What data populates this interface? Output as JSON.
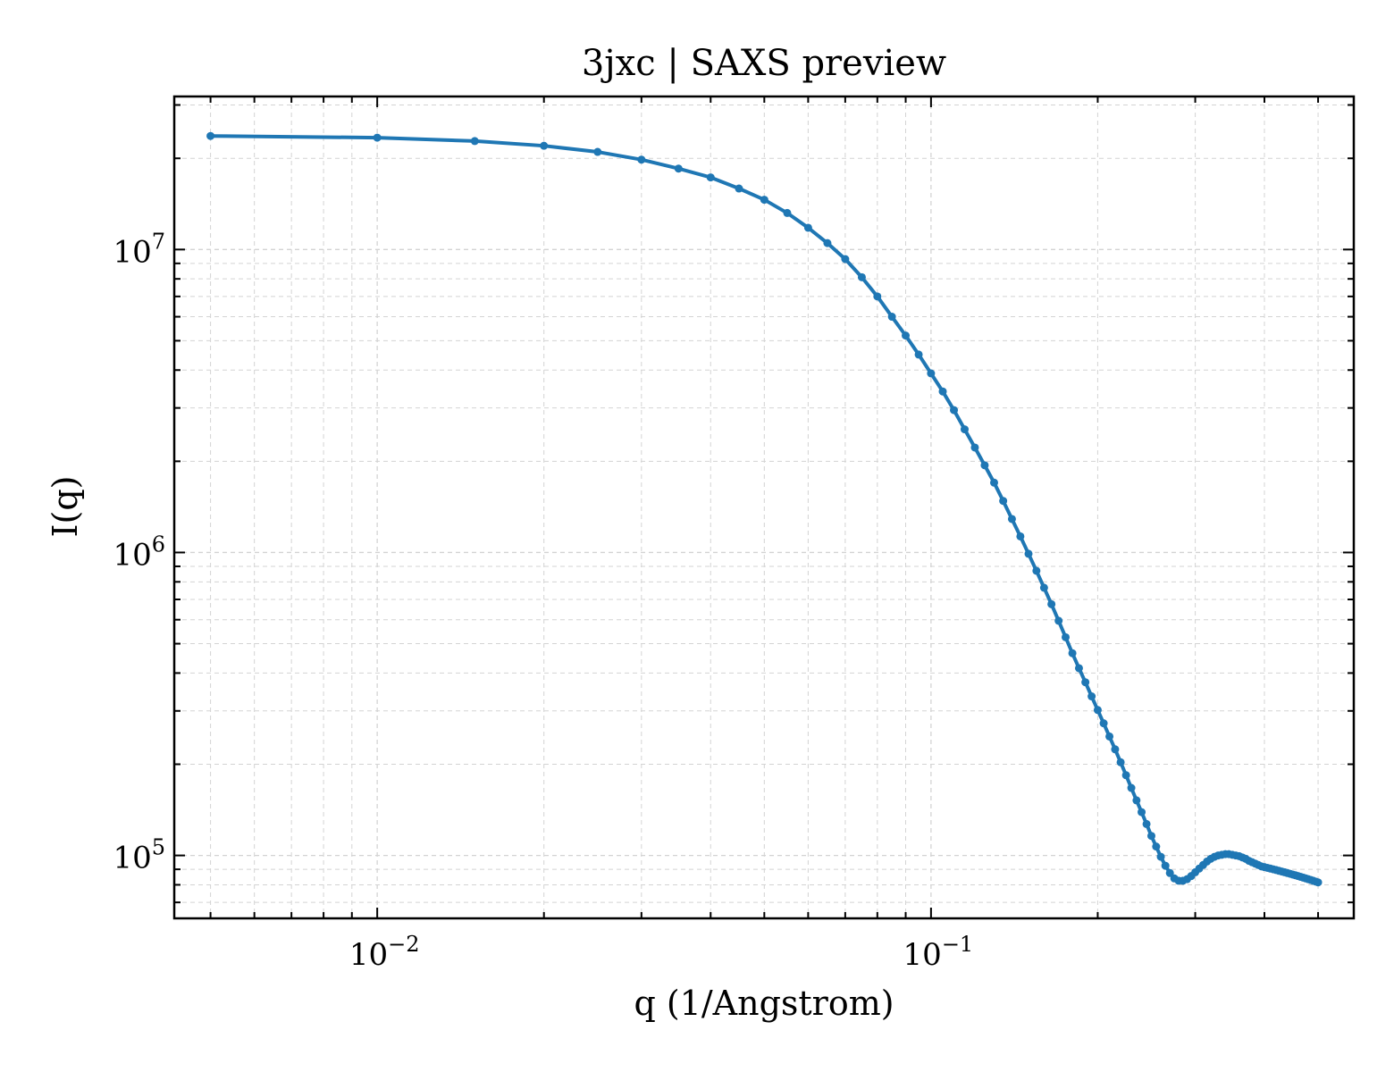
{
  "chart_data": {
    "type": "line",
    "title": "3jxc | SAXS preview",
    "xlabel": "q (1/Angstrom)",
    "ylabel": "I(q)",
    "xscale": "log",
    "yscale": "log",
    "xlim": [
      0.0043,
      0.58
    ],
    "ylim": [
      62000,
      32000000
    ],
    "xticks": [
      {
        "value": 0.01,
        "base": "10",
        "exp": "−2"
      },
      {
        "value": 0.1,
        "base": "10",
        "exp": "−1"
      }
    ],
    "yticks": [
      {
        "value": 100000,
        "base": "10",
        "exp": "5"
      },
      {
        "value": 1000000,
        "base": "10",
        "exp": "6"
      },
      {
        "value": 10000000,
        "base": "10",
        "exp": "7"
      }
    ],
    "grid": true,
    "colors": {
      "line": "#1f77b4",
      "grid": "#d3d3d3",
      "axes": "#000000"
    },
    "series": [
      {
        "x": [
          0.005,
          0.01,
          0.015,
          0.02,
          0.025,
          0.03,
          0.035,
          0.04,
          0.045,
          0.05,
          0.055,
          0.06,
          0.065,
          0.07,
          0.075,
          0.08,
          0.085,
          0.09,
          0.095,
          0.1,
          0.105,
          0.11,
          0.115,
          0.12,
          0.125,
          0.13,
          0.135,
          0.14,
          0.145,
          0.15,
          0.155,
          0.16,
          0.165,
          0.17,
          0.175,
          0.18,
          0.185,
          0.19,
          0.195,
          0.2,
          0.205,
          0.21,
          0.215,
          0.22,
          0.225,
          0.23,
          0.235,
          0.24,
          0.245,
          0.25,
          0.255,
          0.26,
          0.265,
          0.27,
          0.275,
          0.28,
          0.285,
          0.29,
          0.295,
          0.3,
          0.305,
          0.31,
          0.315,
          0.32,
          0.325,
          0.33,
          0.335,
          0.34,
          0.345,
          0.35,
          0.355,
          0.36,
          0.365,
          0.37,
          0.375,
          0.38,
          0.385,
          0.39,
          0.395,
          0.4,
          0.405,
          0.41,
          0.415,
          0.42,
          0.425,
          0.43,
          0.435,
          0.44,
          0.445,
          0.45,
          0.455,
          0.46,
          0.465,
          0.47,
          0.475,
          0.48,
          0.485,
          0.49,
          0.495,
          0.5
        ],
        "y": [
          23700000,
          23400000,
          22800000,
          22000000,
          21000000,
          19800000,
          18500000,
          17300000,
          15900000,
          14600000,
          13200000,
          11800000,
          10500000,
          9300000,
          8100000,
          7000000,
          6000000,
          5200000,
          4500000,
          3900000,
          3400000,
          2950000,
          2550000,
          2220000,
          1940000,
          1700000,
          1480000,
          1290000,
          1130000,
          990000,
          870000,
          765000,
          675000,
          595000,
          525000,
          465000,
          415000,
          373000,
          335000,
          302000,
          273000,
          247000,
          224000,
          203000,
          184000,
          167000,
          152000,
          139000,
          127000,
          116000,
          107000,
          99000,
          92500,
          87500,
          84000,
          82500,
          82500,
          83500,
          85500,
          88000,
          90500,
          93000,
          95500,
          97500,
          99000,
          100000,
          100500,
          101000,
          101000,
          100500,
          100000,
          99500,
          98500,
          97500,
          96000,
          95000,
          94000,
          93000,
          92000,
          91500,
          91000,
          90500,
          90000,
          89500,
          89000,
          88500,
          88000,
          87500,
          87000,
          86500,
          86000,
          85500,
          85000,
          84500,
          84000,
          83500,
          83000,
          82500,
          82000,
          81500
        ]
      }
    ]
  }
}
